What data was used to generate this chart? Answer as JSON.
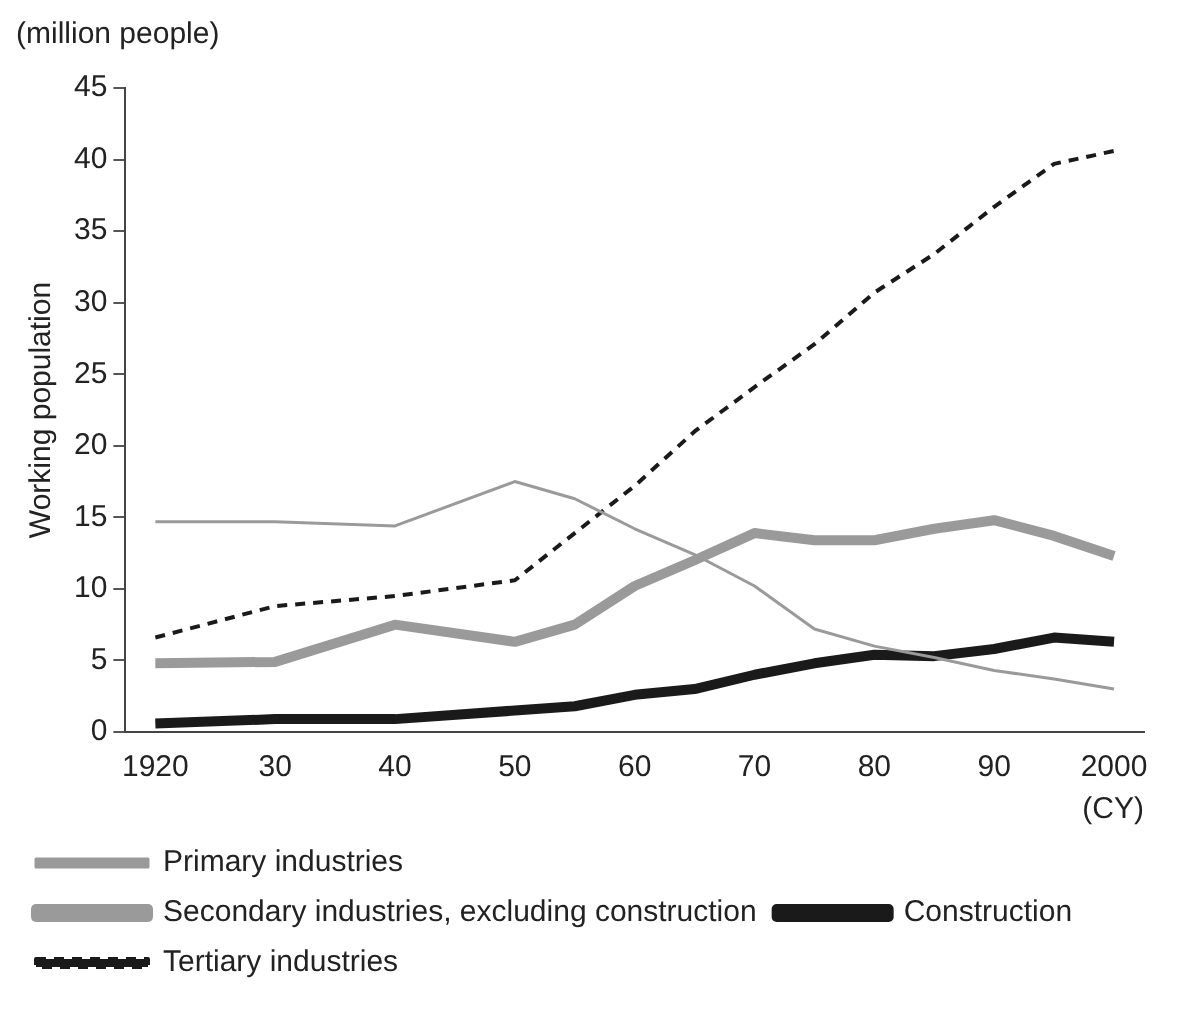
{
  "chart_data": {
    "type": "line",
    "annotations": [
      "(million people)"
    ],
    "ylabel": "Working population",
    "xlabel": "(CY)",
    "x": [
      1920,
      1930,
      1940,
      1950,
      1955,
      1960,
      1965,
      1970,
      1975,
      1980,
      1985,
      1990,
      1995,
      2000
    ],
    "series": [
      {
        "name": "Primary industries",
        "color": "#9a9a9a",
        "values": [
          14.7,
          14.7,
          14.4,
          17.5,
          16.3,
          14.2,
          12.4,
          10.2,
          7.2,
          6.0,
          5.2,
          4.3,
          3.7,
          3.0
        ]
      },
      {
        "name": "Secondary industries, excluding construction",
        "color": "#9a9a9a",
        "values": [
          4.8,
          4.9,
          7.5,
          6.3,
          7.5,
          10.2,
          12.0,
          13.9,
          13.4,
          13.4,
          14.2,
          14.8,
          13.7,
          12.3
        ]
      },
      {
        "name": "Construction",
        "color": "#1a1a1a",
        "values": [
          0.6,
          0.9,
          0.9,
          1.5,
          1.8,
          2.6,
          3.0,
          4.0,
          4.8,
          5.4,
          5.3,
          5.8,
          6.6,
          6.3
        ]
      },
      {
        "name": "Tertiary industries",
        "color": "#1a1a1a",
        "line_style": "dashed",
        "values": [
          6.6,
          8.8,
          9.5,
          10.6,
          13.9,
          17.2,
          21.0,
          24.1,
          27.1,
          30.7,
          33.4,
          36.7,
          39.7,
          40.6
        ]
      }
    ],
    "xlim": [
      1917.5,
      2002.5
    ],
    "xticks": [
      1920,
      {
        "value": 1930,
        "label": "30"
      },
      {
        "value": 1940,
        "label": "40"
      },
      {
        "value": 1950,
        "label": "50"
      },
      {
        "value": 1960,
        "label": "60"
      },
      {
        "value": 1970,
        "label": "70"
      },
      {
        "value": 1980,
        "label": "80"
      },
      {
        "value": 1990,
        "label": "90"
      },
      2000
    ],
    "ylim": [
      0,
      45
    ],
    "yticks": [
      0,
      5,
      10,
      15,
      20,
      25,
      30,
      35,
      40,
      45
    ],
    "grid": false,
    "legend": "bottom",
    "marker": "none"
  }
}
